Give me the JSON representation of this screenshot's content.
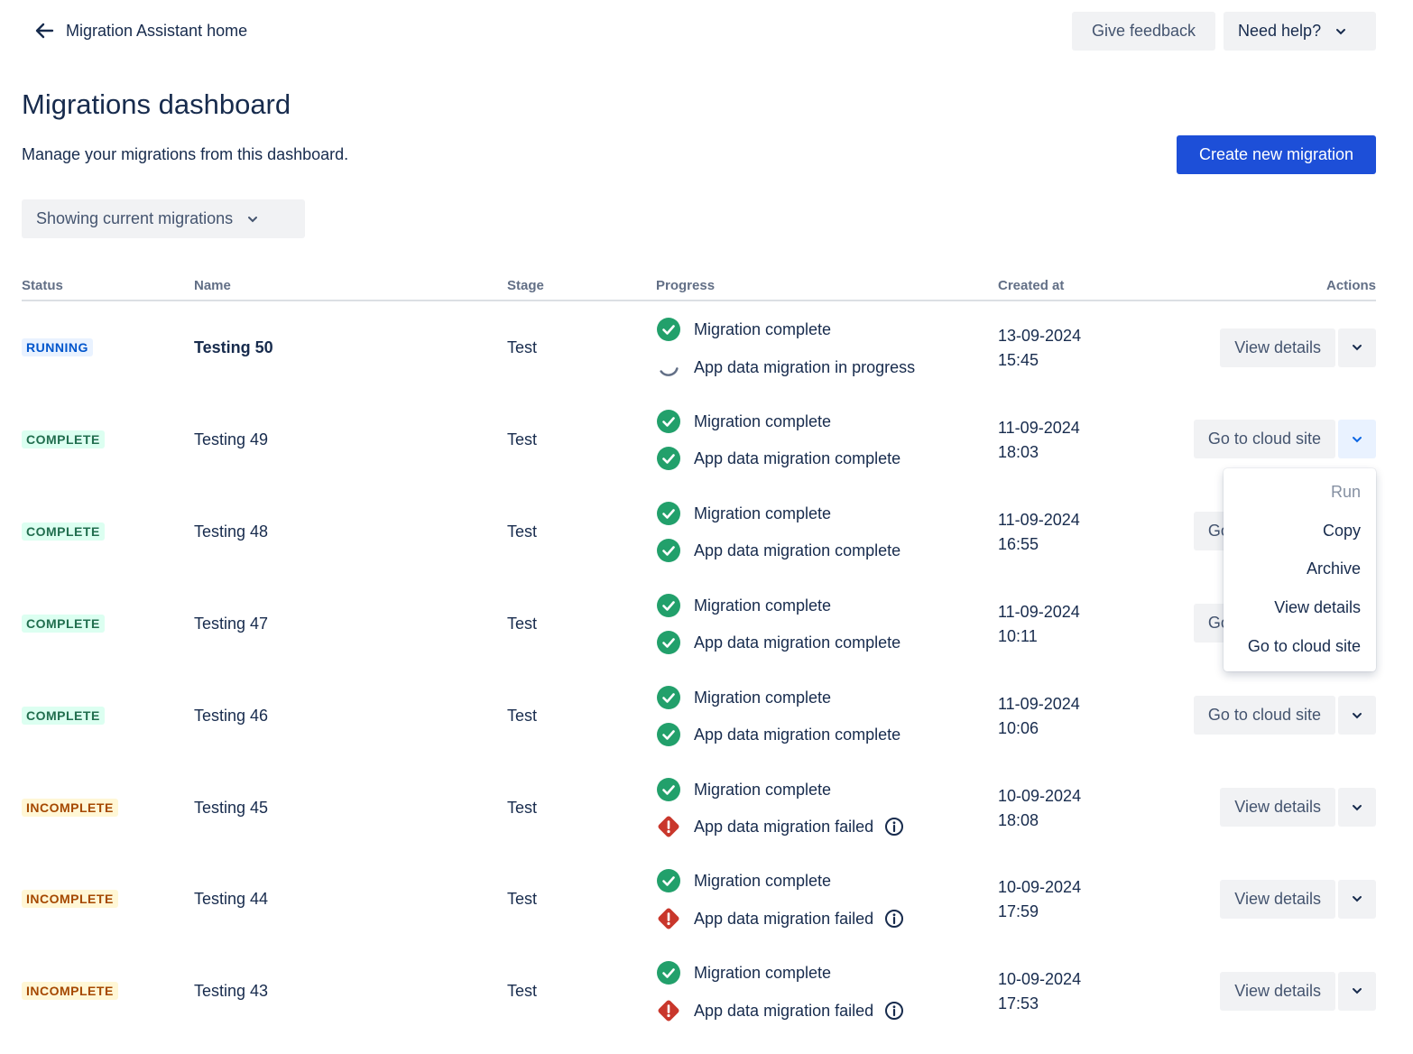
{
  "header": {
    "back_link": "Migration Assistant home",
    "feedback": "Give feedback",
    "help": "Need help?"
  },
  "title": "Migrations dashboard",
  "description": "Manage your migrations from this dashboard.",
  "create_button": "Create new migration",
  "filter": "Showing current migrations",
  "table": {
    "columns": [
      "Status",
      "Name",
      "Stage",
      "Progress",
      "Created at",
      "Actions"
    ],
    "rows": [
      {
        "status": "RUNNING",
        "tone": "info",
        "name": "Testing 50",
        "emphasis": true,
        "stage": "Test",
        "progress": [
          {
            "state": "complete",
            "text": "Migration complete"
          },
          {
            "state": "running",
            "text": "App data migration in progress"
          }
        ],
        "date": "13-09-2024",
        "time": "15:45",
        "action": "View details",
        "open": false
      },
      {
        "status": "COMPLETE",
        "tone": "success",
        "name": "Testing 49",
        "emphasis": false,
        "stage": "Test",
        "progress": [
          {
            "state": "complete",
            "text": "Migration complete"
          },
          {
            "state": "complete",
            "text": "App data migration complete"
          }
        ],
        "date": "11-09-2024",
        "time": "18:03",
        "action": "Go to cloud site",
        "open": true
      },
      {
        "status": "COMPLETE",
        "tone": "success",
        "name": "Testing 48",
        "emphasis": false,
        "stage": "Test",
        "progress": [
          {
            "state": "complete",
            "text": "Migration complete"
          },
          {
            "state": "complete",
            "text": "App data migration complete"
          }
        ],
        "date": "11-09-2024",
        "time": "16:55",
        "action": "Go to cloud site",
        "open": false
      },
      {
        "status": "COMPLETE",
        "tone": "success",
        "name": "Testing 47",
        "emphasis": false,
        "stage": "Test",
        "progress": [
          {
            "state": "complete",
            "text": "Migration complete"
          },
          {
            "state": "complete",
            "text": "App data migration complete"
          }
        ],
        "date": "11-09-2024",
        "time": "10:11",
        "action": "Go to cloud site",
        "open": false
      },
      {
        "status": "COMPLETE",
        "tone": "success",
        "name": "Testing 46",
        "emphasis": false,
        "stage": "Test",
        "progress": [
          {
            "state": "complete",
            "text": "Migration complete"
          },
          {
            "state": "complete",
            "text": "App data migration complete"
          }
        ],
        "date": "11-09-2024",
        "time": "10:06",
        "action": "Go to cloud site",
        "open": false
      },
      {
        "status": "INCOMPLETE",
        "tone": "warning",
        "name": "Testing 45",
        "emphasis": false,
        "stage": "Test",
        "progress": [
          {
            "state": "complete",
            "text": "Migration complete"
          },
          {
            "state": "failed",
            "text": "App data migration failed"
          }
        ],
        "date": "10-09-2024",
        "time": "18:08",
        "action": "View details",
        "open": false
      },
      {
        "status": "INCOMPLETE",
        "tone": "warning",
        "name": "Testing 44",
        "emphasis": false,
        "stage": "Test",
        "progress": [
          {
            "state": "complete",
            "text": "Migration complete"
          },
          {
            "state": "failed",
            "text": "App data migration failed"
          }
        ],
        "date": "10-09-2024",
        "time": "17:59",
        "action": "View details",
        "open": false
      },
      {
        "status": "INCOMPLETE",
        "tone": "warning",
        "name": "Testing 43",
        "emphasis": false,
        "stage": "Test",
        "progress": [
          {
            "state": "complete",
            "text": "Migration complete"
          },
          {
            "state": "failed",
            "text": "App data migration failed"
          }
        ],
        "date": "10-09-2024",
        "time": "17:53",
        "action": "View details",
        "open": false
      }
    ]
  },
  "menu": [
    {
      "text": "Run",
      "disabled": true
    },
    {
      "text": "Copy",
      "disabled": false
    },
    {
      "text": "Archive",
      "disabled": false
    },
    {
      "text": "View details",
      "disabled": false
    },
    {
      "text": "Go to cloud site",
      "disabled": false
    }
  ]
}
